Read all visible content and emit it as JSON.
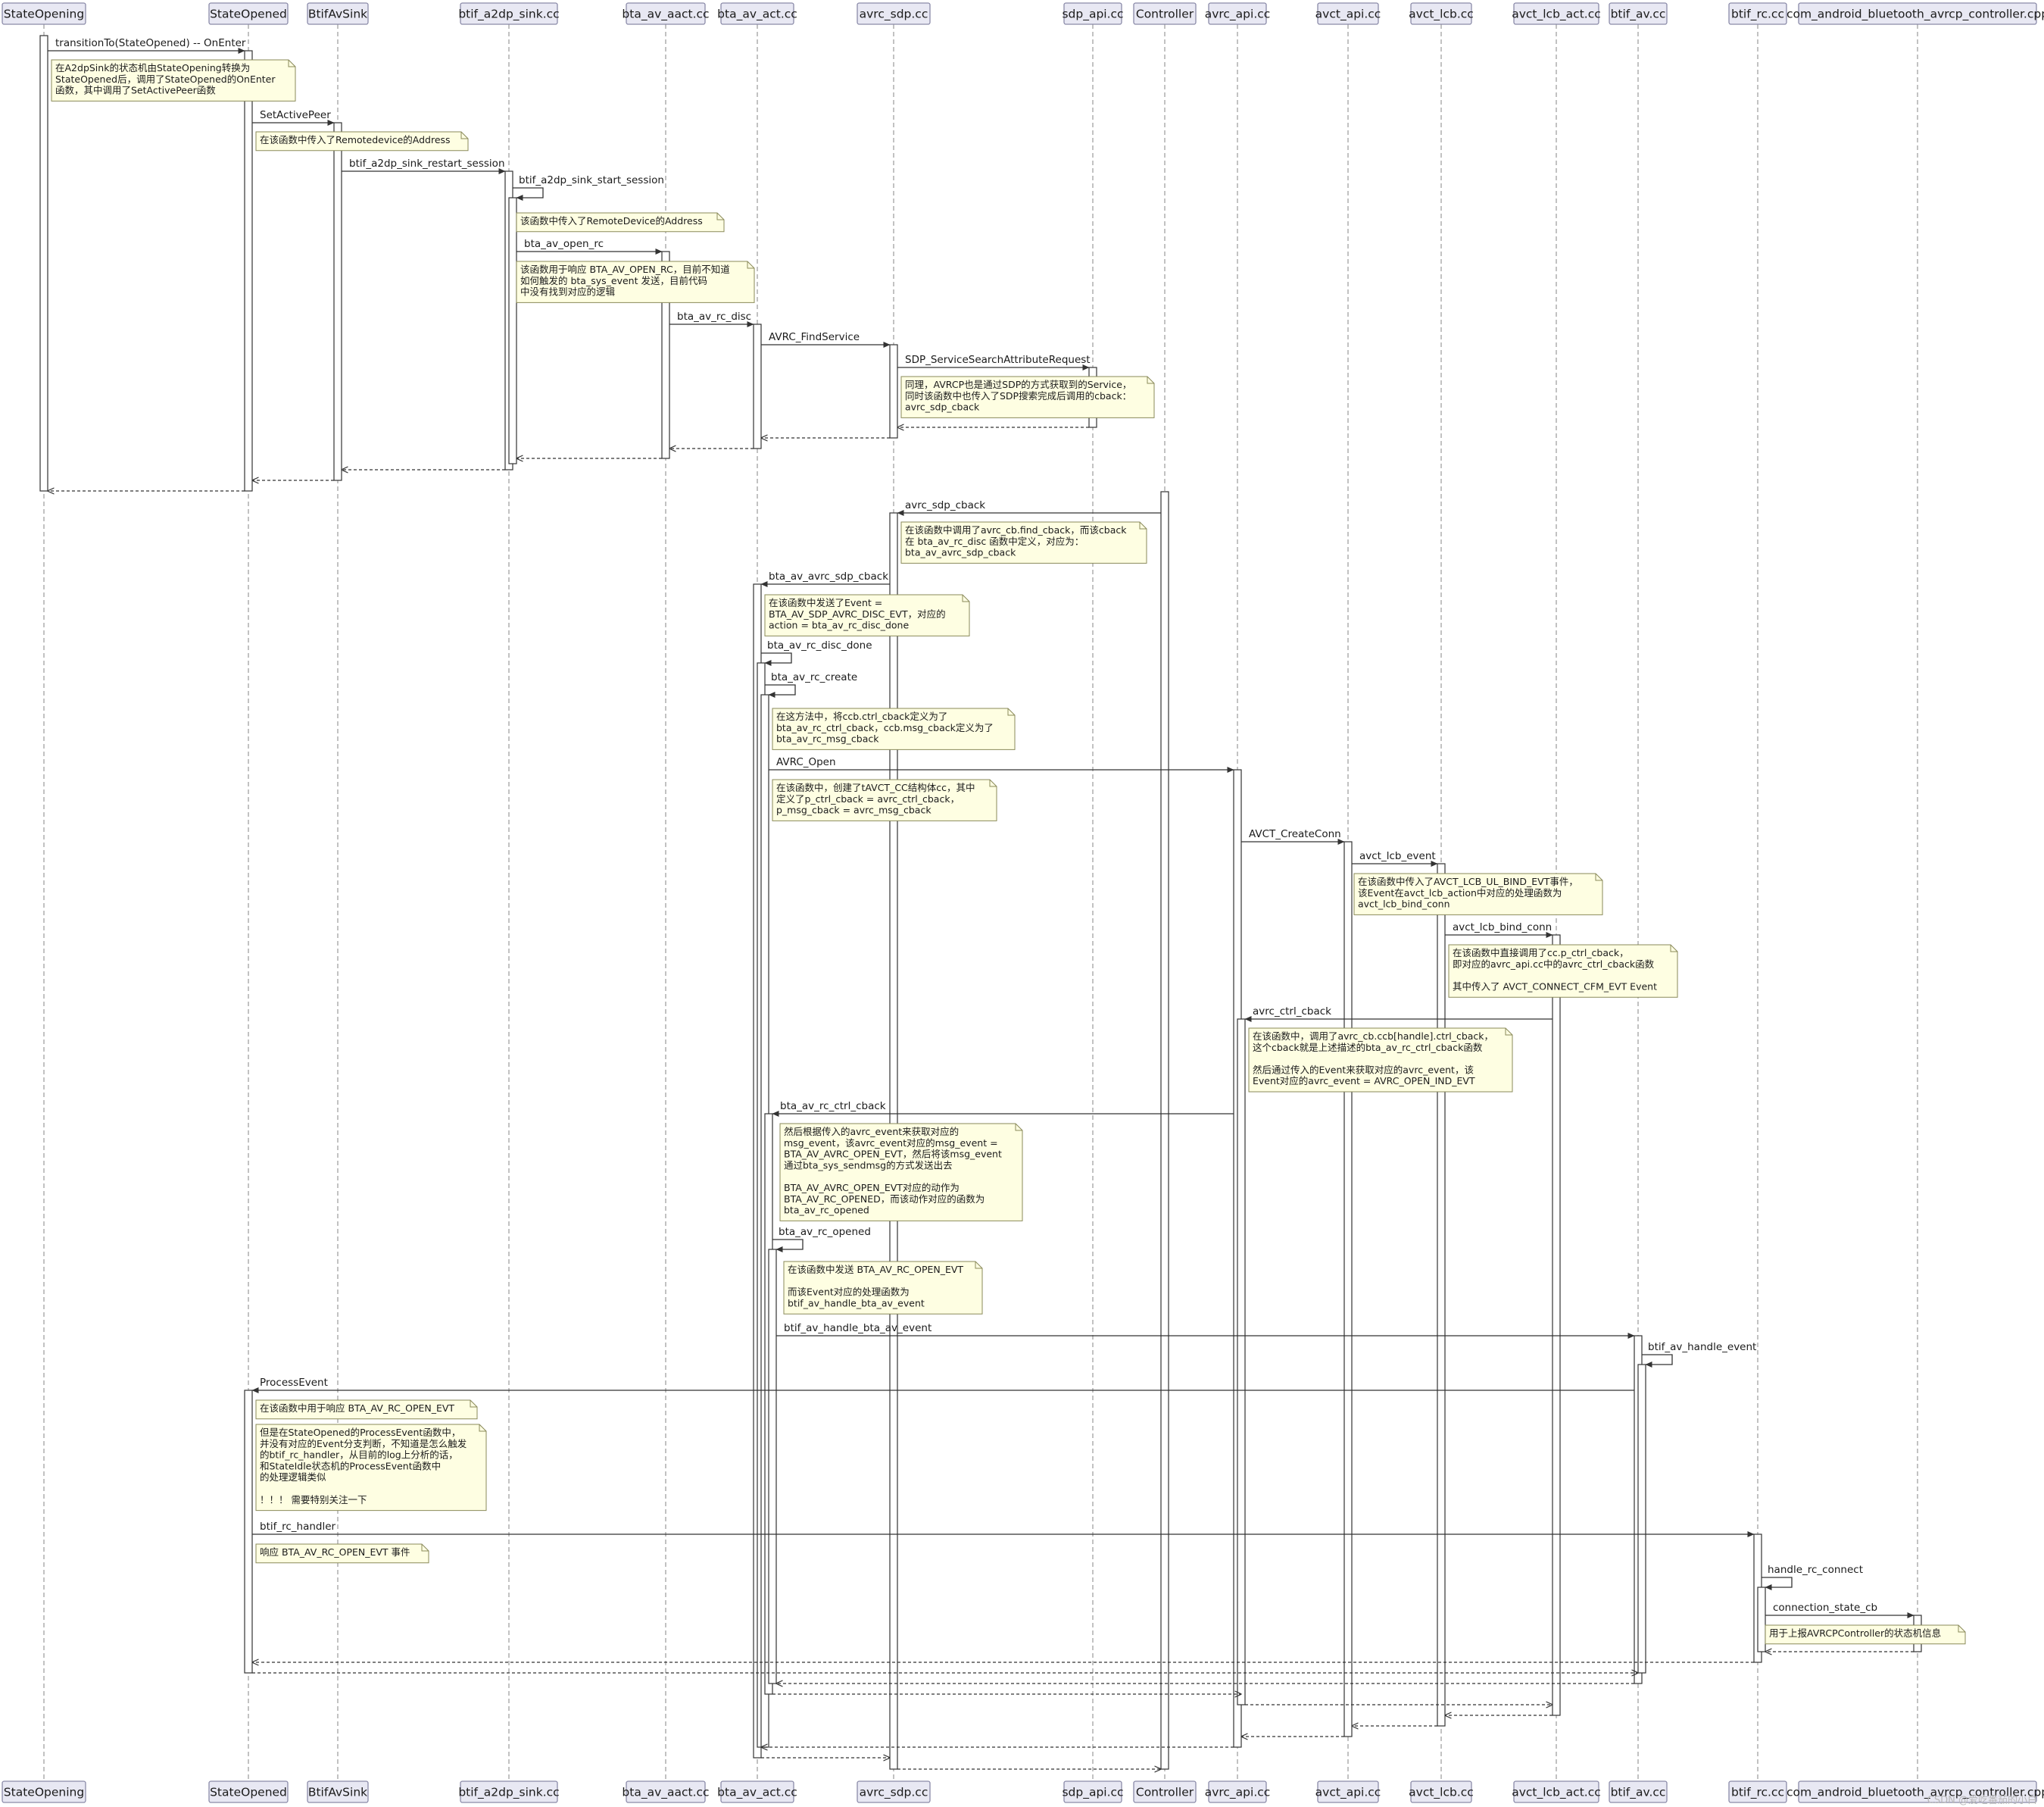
{
  "participants": [
    {
      "id": "p0",
      "label": "StateOpening"
    },
    {
      "id": "p1",
      "label": "StateOpened"
    },
    {
      "id": "p2",
      "label": "BtifAvSink"
    },
    {
      "id": "p3",
      "label": "btif_a2dp_sink.cc"
    },
    {
      "id": "p4",
      "label": "bta_av_aact.cc"
    },
    {
      "id": "p5",
      "label": "bta_av_act.cc"
    },
    {
      "id": "p6",
      "label": "avrc_sdp.cc"
    },
    {
      "id": "p7",
      "label": "sdp_api.cc"
    },
    {
      "id": "p8",
      "label": "Controller"
    },
    {
      "id": "p9",
      "label": "avrc_api.cc"
    },
    {
      "id": "p10",
      "label": "avct_api.cc"
    },
    {
      "id": "p11",
      "label": "avct_lcb.cc"
    },
    {
      "id": "p12",
      "label": "avct_lcb_act.cc"
    },
    {
      "id": "p13",
      "label": "btif_av.cc"
    },
    {
      "id": "p14",
      "label": "btif_rc.cc"
    },
    {
      "id": "p15",
      "label": "com_android_bluetooth_avrcp_controller.cpp"
    }
  ],
  "messages": [
    {
      "id": "m1",
      "label": "transitionTo(StateOpened) -- OnEnter"
    },
    {
      "id": "m2",
      "label": "SetActivePeer"
    },
    {
      "id": "m3",
      "label": "btif_a2dp_sink_restart_session"
    },
    {
      "id": "m4",
      "label": "btif_a2dp_sink_start_session"
    },
    {
      "id": "m5",
      "label": "bta_av_open_rc"
    },
    {
      "id": "m6",
      "label": "bta_av_rc_disc"
    },
    {
      "id": "m7",
      "label": "AVRC_FindService"
    },
    {
      "id": "m8",
      "label": "SDP_ServiceSearchAttributeRequest"
    },
    {
      "id": "m9",
      "label": "avrc_sdp_cback"
    },
    {
      "id": "m10",
      "label": "bta_av_avrc_sdp_cback"
    },
    {
      "id": "m11",
      "label": "bta_av_rc_disc_done"
    },
    {
      "id": "m12",
      "label": "bta_av_rc_create"
    },
    {
      "id": "m13",
      "label": "AVRC_Open"
    },
    {
      "id": "m14",
      "label": "AVCT_CreateConn"
    },
    {
      "id": "m15",
      "label": "avct_lcb_event"
    },
    {
      "id": "m16",
      "label": "avct_lcb_bind_conn"
    },
    {
      "id": "m17",
      "label": "avrc_ctrl_cback"
    },
    {
      "id": "m18",
      "label": "bta_av_rc_ctrl_cback"
    },
    {
      "id": "m19",
      "label": "bta_av_rc_opened"
    },
    {
      "id": "m20",
      "label": "btif_av_handle_bta_av_event"
    },
    {
      "id": "m21",
      "label": "btif_av_handle_event"
    },
    {
      "id": "m22",
      "label": "ProcessEvent"
    },
    {
      "id": "m23",
      "label": "btif_rc_handler"
    },
    {
      "id": "m24",
      "label": "handle_rc_connect"
    },
    {
      "id": "m25",
      "label": "connection_state_cb"
    }
  ],
  "notes": [
    {
      "id": "n1",
      "lines": [
        "在A2dpSink的状态机由StateOpening转换为",
        "StateOpened后，调用了StateOpened的OnEnter",
        "函数，其中调用了SetActivePeer函数"
      ]
    },
    {
      "id": "n2",
      "lines": [
        "在该函数中传入了Remotedevice的Address"
      ]
    },
    {
      "id": "n3",
      "lines": [
        "该函数中传入了RemoteDevice的Address"
      ]
    },
    {
      "id": "n4",
      "lines": [
        "该函数用于响应 BTA_AV_OPEN_RC，目前不知道",
        "如何触发的 bta_sys_event 发送，目前代码",
        "中没有找到对应的逻辑"
      ]
    },
    {
      "id": "n5",
      "lines": [
        "同理，AVRCP也是通过SDP的方式获取到的Service，",
        "同时该函数中也传入了SDP搜索完成后调用的cback：",
        "avrc_sdp_cback"
      ]
    },
    {
      "id": "n6",
      "lines": [
        "在该函数中调用了avrc_cb.find_cback，而该cback",
        "在 bta_av_rc_disc 函数中定义，对应为：",
        "bta_av_avrc_sdp_cback"
      ]
    },
    {
      "id": "n7",
      "lines": [
        "在该函数中发送了Event =",
        "BTA_AV_SDP_AVRC_DISC_EVT，对应的",
        "action = bta_av_rc_disc_done"
      ]
    },
    {
      "id": "n8",
      "lines": [
        "在这方法中，将ccb.ctrl_cback定义为了",
        "bta_av_rc_ctrl_cback，ccb.msg_cback定义为了",
        "bta_av_rc_msg_cback"
      ]
    },
    {
      "id": "n9",
      "lines": [
        "在该函数中，创建了tAVCT_CC结构体cc，其中",
        "定义了p_ctrl_cback = avrc_ctrl_cback，",
        "p_msg_cback = avrc_msg_cback"
      ]
    },
    {
      "id": "n10",
      "lines": [
        "在该函数中传入了AVCT_LCB_UL_BIND_EVT事件，",
        "该Event在avct_lcb_action中对应的处理函数为",
        "avct_lcb_bind_conn"
      ]
    },
    {
      "id": "n11",
      "lines": [
        "在该函数中直接调用了cc.p_ctrl_cback，",
        "即对应的avrc_api.cc中的avrc_ctrl_cback函数",
        "",
        "其中传入了 AVCT_CONNECT_CFM_EVT Event"
      ]
    },
    {
      "id": "n12",
      "lines": [
        "在该函数中，调用了avrc_cb.ccb[handle].ctrl_cback，",
        "这个cback就是上述描述的bta_av_rc_ctrl_cback函数",
        "",
        "然后通过传入的Event来获取对应的avrc_event，该",
        "Event对应的avrc_event = AVRC_OPEN_IND_EVT"
      ]
    },
    {
      "id": "n13",
      "lines": [
        "然后根据传入的avrc_event来获取对应的",
        "msg_event，该avrc_event对应的msg_event =",
        "BTA_AV_AVRC_OPEN_EVT，然后将该msg_event",
        "通过bta_sys_sendmsg的方式发送出去",
        "",
        "BTA_AV_AVRC_OPEN_EVT对应的动作为",
        "BTA_AV_RC_OPENED，而该动作对应的函数为",
        "bta_av_rc_opened"
      ]
    },
    {
      "id": "n14",
      "lines": [
        "在该函数中发送 BTA_AV_RC_OPEN_EVT",
        "",
        "而该Event对应的处理函数为",
        "btif_av_handle_bta_av_event"
      ]
    },
    {
      "id": "n15",
      "lines": [
        "在该函数中用于响应 BTA_AV_RC_OPEN_EVT"
      ]
    },
    {
      "id": "n16",
      "lines": [
        "但是在StateOpened的ProcessEvent函数中，",
        "并没有对应的Event分支判断，不知道是怎么触发",
        "的btif_rc_handler，从目前的log上分析的话，",
        "和StateIdle状态机的ProcessEvent函数中",
        "的处理逻辑类似",
        "",
        "！！！ 需要特别关注一下"
      ]
    },
    {
      "id": "n17",
      "lines": [
        "响应 BTA_AV_RC_OPEN_EVT 事件"
      ]
    },
    {
      "id": "n18",
      "lines": [
        "用于上报AVRCPController的状态机信息"
      ]
    }
  ],
  "watermark": "CSDN @爱吃番茄的小白"
}
